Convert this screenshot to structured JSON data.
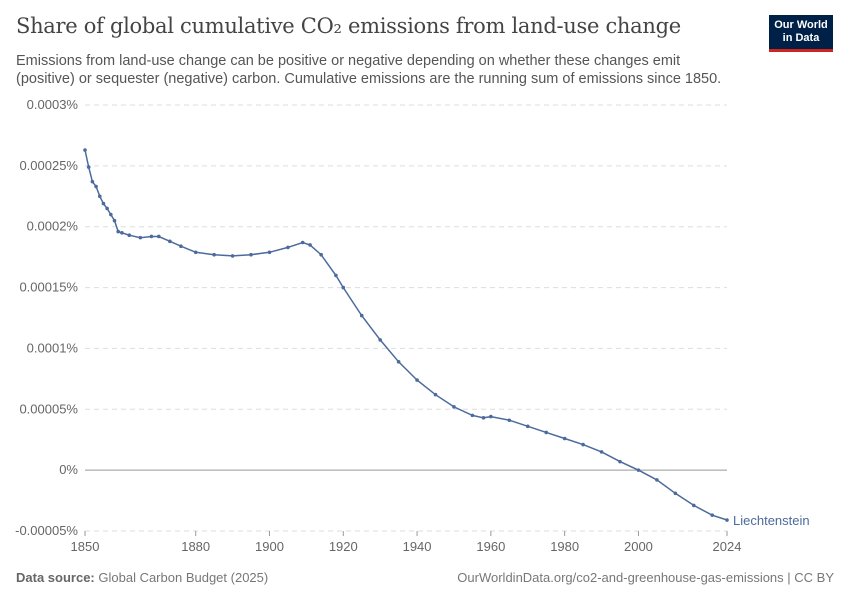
{
  "header": {
    "title": "Share of global cumulative CO₂ emissions from land-use change",
    "subtitle": "Emissions from land-use change can be positive or negative depending on whether these changes emit (positive) or sequester (negative) carbon. Cumulative emissions are the running sum of emissions since 1850.",
    "logo_text": "Our World in Data"
  },
  "footer": {
    "source_label": "Data source:",
    "source": "Global Carbon Budget (2025)",
    "url": "OurWorldinData.org/co2-and-greenhouse-gas-emissions | CC BY"
  },
  "chart_data": {
    "type": "line",
    "title": "Share of global cumulative CO₂ emissions from land-use change",
    "xlabel": "",
    "ylabel": "",
    "xlim": [
      1850,
      2024
    ],
    "ylim": [
      -5e-05,
      0.0003
    ],
    "y_unit": "%",
    "grid": true,
    "x_ticks": [
      "1850",
      "1880",
      "1900",
      "1920",
      "1940",
      "1960",
      "1980",
      "2000",
      "2024"
    ],
    "y_ticks": [
      "0.0003%",
      "0.00025%",
      "0.0002%",
      "0.00015%",
      "0.0001%",
      "0.00005%",
      "0%",
      "-0.00005%"
    ],
    "y_tick_values": [
      0.0003,
      0.00025,
      0.0002,
      0.00015,
      0.0001,
      5e-05,
      0,
      -5e-05
    ],
    "series": [
      {
        "name": "Liechtenstein",
        "color": "#4c6a9c",
        "x": [
          1850,
          1851,
          1852,
          1853,
          1854,
          1855,
          1856,
          1857,
          1858,
          1859,
          1860,
          1862,
          1865,
          1868,
          1870,
          1873,
          1876,
          1880,
          1885,
          1890,
          1895,
          1900,
          1905,
          1909,
          1911,
          1914,
          1918,
          1920,
          1925,
          1930,
          1935,
          1940,
          1945,
          1950,
          1955,
          1958,
          1960,
          1965,
          1970,
          1975,
          1980,
          1985,
          1990,
          1995,
          2000,
          2005,
          2010,
          2015,
          2020,
          2024
        ],
        "y": [
          0.000263,
          0.000249,
          0.000237,
          0.000233,
          0.000225,
          0.000219,
          0.000215,
          0.00021,
          0.000205,
          0.000196,
          0.000195,
          0.000193,
          0.000191,
          0.000192,
          0.000192,
          0.000188,
          0.000184,
          0.000179,
          0.000177,
          0.000176,
          0.000177,
          0.000179,
          0.000183,
          0.000187,
          0.000185,
          0.000177,
          0.00016,
          0.00015,
          0.000127,
          0.000107,
          8.9e-05,
          7.4e-05,
          6.2e-05,
          5.2e-05,
          4.5e-05,
          4.3e-05,
          4.4e-05,
          4.1e-05,
          3.6e-05,
          3.1e-05,
          2.6e-05,
          2.1e-05,
          1.5e-05,
          7e-06,
          0.0,
          -8e-06,
          -1.9e-05,
          -2.9e-05,
          -3.7e-05,
          -4.1e-05
        ]
      }
    ]
  }
}
